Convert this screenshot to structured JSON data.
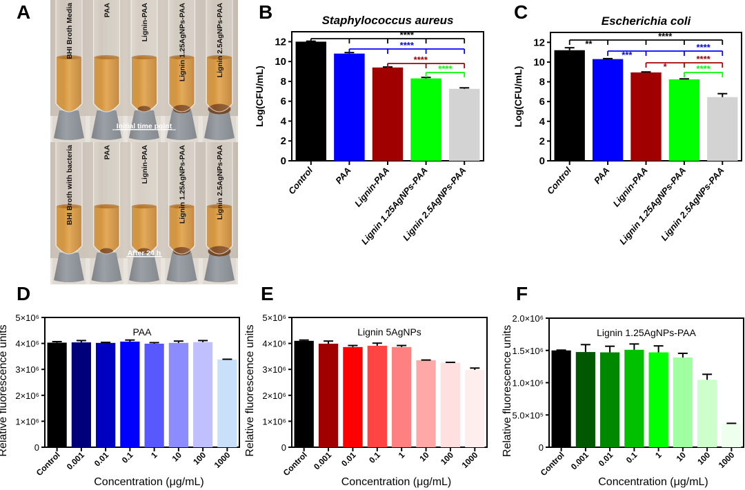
{
  "panels": {
    "A": "A",
    "B": "B",
    "C": "C",
    "D": "D",
    "E": "E",
    "F": "F"
  },
  "photo": {
    "caption_top": "Initial time point",
    "caption_bottom": "After 24 h",
    "tubes_top": [
      "BHI Broth Media",
      "PAA",
      "Lignin-PAA",
      "Lignin 1.25AgNPs-PAA",
      "Lignin 2.5AgNPs-PAA"
    ],
    "tubes_bottom": [
      "BHI Broth with bacteria",
      "PAA",
      "Lignin-PAA",
      "Lignin 1.25AgNPs-PAA",
      "Lignin 2.5AgNPs-PAA"
    ]
  },
  "chart_data": [
    {
      "id": "B",
      "type": "bar",
      "title": "Staphylococcus aureus",
      "xlabel": "",
      "ylabel": "Log(CFU/mL)",
      "ylim": [
        0,
        13
      ],
      "yticks": [
        0,
        2,
        4,
        6,
        8,
        10,
        12
      ],
      "categories": [
        "Control",
        "PAA",
        "Lignin-PAA",
        "Lignin 1.25AgNPs-PAA",
        "Lignin 2.5AgNPs-PAA"
      ],
      "values": [
        12.0,
        10.8,
        9.4,
        8.3,
        7.25
      ],
      "errors": [
        0.05,
        0.1,
        0.05,
        0.1,
        0.1
      ],
      "colors": [
        "#000000",
        "#0000ff",
        "#a00000",
        "#00ff00",
        "#d3d3d3"
      ],
      "significance": [
        {
          "from": 0,
          "to": [
            1,
            2,
            3,
            4
          ],
          "label": "****",
          "color": "#000000"
        },
        {
          "from": 1,
          "to": [
            2,
            3,
            4
          ],
          "label": "****",
          "color": "#0000ff"
        },
        {
          "from": 2,
          "to": [
            3,
            4
          ],
          "label": "****",
          "color": "#a00000"
        },
        {
          "from": 3,
          "to": [
            4
          ],
          "label": "****",
          "color": "#00ff00"
        }
      ]
    },
    {
      "id": "C",
      "type": "bar",
      "title": "Escherichia coli",
      "xlabel": "",
      "ylabel": "Log(CFU/mL)",
      "ylim": [
        0,
        13
      ],
      "yticks": [
        0,
        2,
        4,
        6,
        8,
        10,
        12
      ],
      "categories": [
        "Control",
        "PAA",
        "Lignin-PAA",
        "Lignin 1.25AgNPs-PAA",
        "Lignin 2.5AgNPs-PAA"
      ],
      "values": [
        11.2,
        10.3,
        8.95,
        8.25,
        6.45
      ],
      "errors": [
        0.25,
        0.05,
        0.05,
        0.05,
        0.35
      ],
      "colors": [
        "#000000",
        "#0000ff",
        "#a00000",
        "#00ff00",
        "#d3d3d3"
      ],
      "significance": [
        {
          "from": 0,
          "to": [
            1,
            2,
            3,
            4
          ],
          "label": "****",
          "sub_label": "**",
          "color": "#000000"
        },
        {
          "from": 1,
          "to": [
            2,
            3,
            4
          ],
          "label": "****",
          "sub_label": "***",
          "color": "#0000ff"
        },
        {
          "from": 2,
          "to": [
            3,
            4
          ],
          "label": "****",
          "sub_label": "*",
          "color": "#a00000"
        },
        {
          "from": 3,
          "to": [
            4
          ],
          "label": "****",
          "color": "#00ff00"
        }
      ]
    },
    {
      "id": "D",
      "type": "bar",
      "title": "PAA",
      "xlabel": "Concentration (μg/mL)",
      "ylabel": "Relative fluorescence units",
      "ylim": [
        0,
        5000000
      ],
      "yticks": [
        0,
        1000000,
        2000000,
        3000000,
        4000000,
        5000000
      ],
      "ytick_labels": [
        "0",
        "1×10⁶",
        "2×10⁶",
        "3×10⁶",
        "4×10⁶",
        "5×10⁶"
      ],
      "categories": [
        "Control",
        "0.001",
        "0.01",
        "0.1",
        "1",
        "10",
        "100",
        "1000"
      ],
      "values": [
        4030000,
        4040000,
        4020000,
        4070000,
        3990000,
        4020000,
        4050000,
        3380000
      ],
      "errors": [
        40000,
        70000,
        20000,
        60000,
        40000,
        70000,
        60000,
        10000
      ],
      "colors": [
        "#000000",
        "#00007a",
        "#0000c0",
        "#0000ff",
        "#5858ff",
        "#8c8cff",
        "#c0c0ff",
        "#c8e0fa"
      ]
    },
    {
      "id": "E",
      "type": "bar",
      "title": "Lignin 5AgNPs",
      "xlabel": "Concentration (μg/mL)",
      "ylabel": "Relative fluorescence units",
      "ylim": [
        0,
        5000000
      ],
      "yticks": [
        0,
        1000000,
        2000000,
        3000000,
        4000000,
        5000000
      ],
      "ytick_labels": [
        "0",
        "1×10⁶",
        "2×10⁶",
        "3×10⁶",
        "4×10⁶",
        "5×10⁶"
      ],
      "categories": [
        "Control",
        "0.001",
        "0.01",
        "0.1",
        "1",
        "10",
        "100",
        "1000"
      ],
      "values": [
        4100000,
        3990000,
        3860000,
        3910000,
        3860000,
        3350000,
        3260000,
        2980000
      ],
      "errors": [
        30000,
        100000,
        60000,
        100000,
        60000,
        10000,
        10000,
        70000
      ],
      "colors": [
        "#000000",
        "#a00000",
        "#ff0000",
        "#ff4444",
        "#ff8080",
        "#ffa8a8",
        "#ffe0e0",
        "#ffeeee"
      ]
    },
    {
      "id": "F",
      "type": "bar",
      "title": "Lignin 1.25AgNPs-PAA",
      "xlabel": "Concentration (μg/mL)",
      "ylabel": "Relative fluorescence units",
      "ylim": [
        0,
        2000000
      ],
      "yticks": [
        0,
        500000,
        1000000,
        1500000,
        2000000
      ],
      "ytick_labels": [
        "0",
        "5.0×10⁵",
        "1.0×10⁶",
        "1.5×10⁶",
        "2.0×10⁶"
      ],
      "categories": [
        "Control",
        "0.001",
        "0.01",
        "0.1",
        "1",
        "10",
        "100",
        "1000"
      ],
      "values": [
        1500000,
        1475000,
        1470000,
        1510000,
        1470000,
        1390000,
        1045000,
        365000
      ],
      "errors": [
        5000,
        115000,
        95000,
        90000,
        100000,
        65000,
        85000,
        5000
      ],
      "colors": [
        "#000000",
        "#005800",
        "#008800",
        "#00c000",
        "#00ff00",
        "#a0ffa0",
        "#ccffcc",
        "#eeffee"
      ]
    }
  ]
}
